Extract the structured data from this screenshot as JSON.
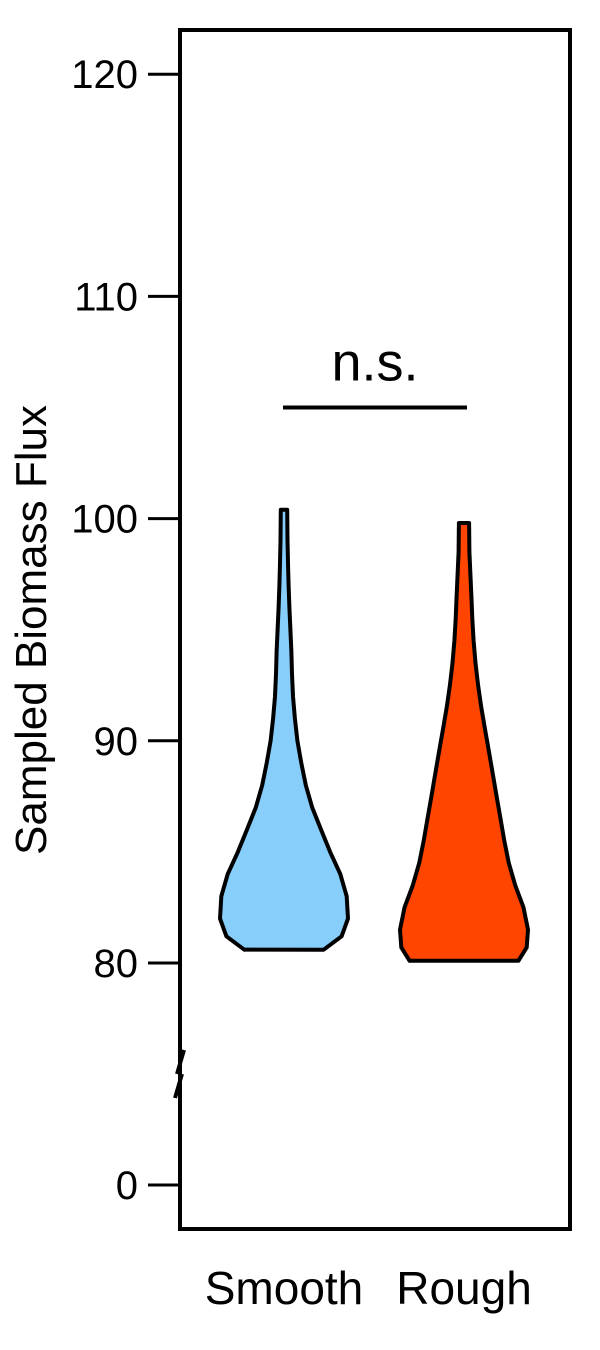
{
  "chart_data": {
    "type": "violin",
    "title": "",
    "xlabel": "",
    "ylabel": "Sampled Biomass Flux",
    "categories": [
      "Smooth",
      "Rough"
    ],
    "y_ticks": [
      {
        "value": 0,
        "label": "0"
      },
      {
        "value": 80,
        "label": "80"
      },
      {
        "value": 90,
        "label": "90"
      },
      {
        "value": 100,
        "label": "100"
      },
      {
        "value": 110,
        "label": "110"
      },
      {
        "value": 120,
        "label": "120"
      }
    ],
    "axis_break": {
      "from": 0,
      "to": 80
    },
    "ylim": [
      0,
      122
    ],
    "series": [
      {
        "category": "Smooth",
        "color": "#87CEFA",
        "min": 80.6,
        "max": 100.4,
        "profile": [
          {
            "y": 80.6,
            "w": 0.62
          },
          {
            "y": 81.2,
            "w": 0.9
          },
          {
            "y": 82.0,
            "w": 1.0
          },
          {
            "y": 83.0,
            "w": 0.98
          },
          {
            "y": 84.0,
            "w": 0.88
          },
          {
            "y": 85.0,
            "w": 0.72
          },
          {
            "y": 86.0,
            "w": 0.58
          },
          {
            "y": 87.0,
            "w": 0.44
          },
          {
            "y": 88.0,
            "w": 0.34
          },
          {
            "y": 89.0,
            "w": 0.27
          },
          {
            "y": 90.0,
            "w": 0.21
          },
          {
            "y": 91.0,
            "w": 0.17
          },
          {
            "y": 92.0,
            "w": 0.14
          },
          {
            "y": 93.0,
            "w": 0.125
          },
          {
            "y": 94.0,
            "w": 0.115
          },
          {
            "y": 95.0,
            "w": 0.1
          },
          {
            "y": 96.0,
            "w": 0.085
          },
          {
            "y": 97.0,
            "w": 0.072
          },
          {
            "y": 98.0,
            "w": 0.062
          },
          {
            "y": 99.0,
            "w": 0.055
          },
          {
            "y": 100.4,
            "w": 0.05
          }
        ]
      },
      {
        "category": "Rough",
        "color": "#FF4500",
        "min": 80.1,
        "max": 99.8,
        "profile": [
          {
            "y": 80.1,
            "w": 0.85
          },
          {
            "y": 80.7,
            "w": 0.98
          },
          {
            "y": 81.5,
            "w": 1.0
          },
          {
            "y": 82.5,
            "w": 0.93
          },
          {
            "y": 83.5,
            "w": 0.8
          },
          {
            "y": 84.5,
            "w": 0.7
          },
          {
            "y": 85.5,
            "w": 0.63
          },
          {
            "y": 86.5,
            "w": 0.57
          },
          {
            "y": 87.5,
            "w": 0.51
          },
          {
            "y": 88.5,
            "w": 0.45
          },
          {
            "y": 89.5,
            "w": 0.39
          },
          {
            "y": 90.5,
            "w": 0.33
          },
          {
            "y": 91.5,
            "w": 0.27
          },
          {
            "y": 92.5,
            "w": 0.22
          },
          {
            "y": 93.5,
            "w": 0.18
          },
          {
            "y": 94.5,
            "w": 0.15
          },
          {
            "y": 95.5,
            "w": 0.13
          },
          {
            "y": 96.5,
            "w": 0.115
          },
          {
            "y": 97.5,
            "w": 0.1
          },
          {
            "y": 98.5,
            "w": 0.085
          },
          {
            "y": 99.8,
            "w": 0.08
          }
        ]
      }
    ],
    "annotations": [
      {
        "text": "n.s.",
        "y": 105
      }
    ],
    "grid": false,
    "legend": "none"
  }
}
